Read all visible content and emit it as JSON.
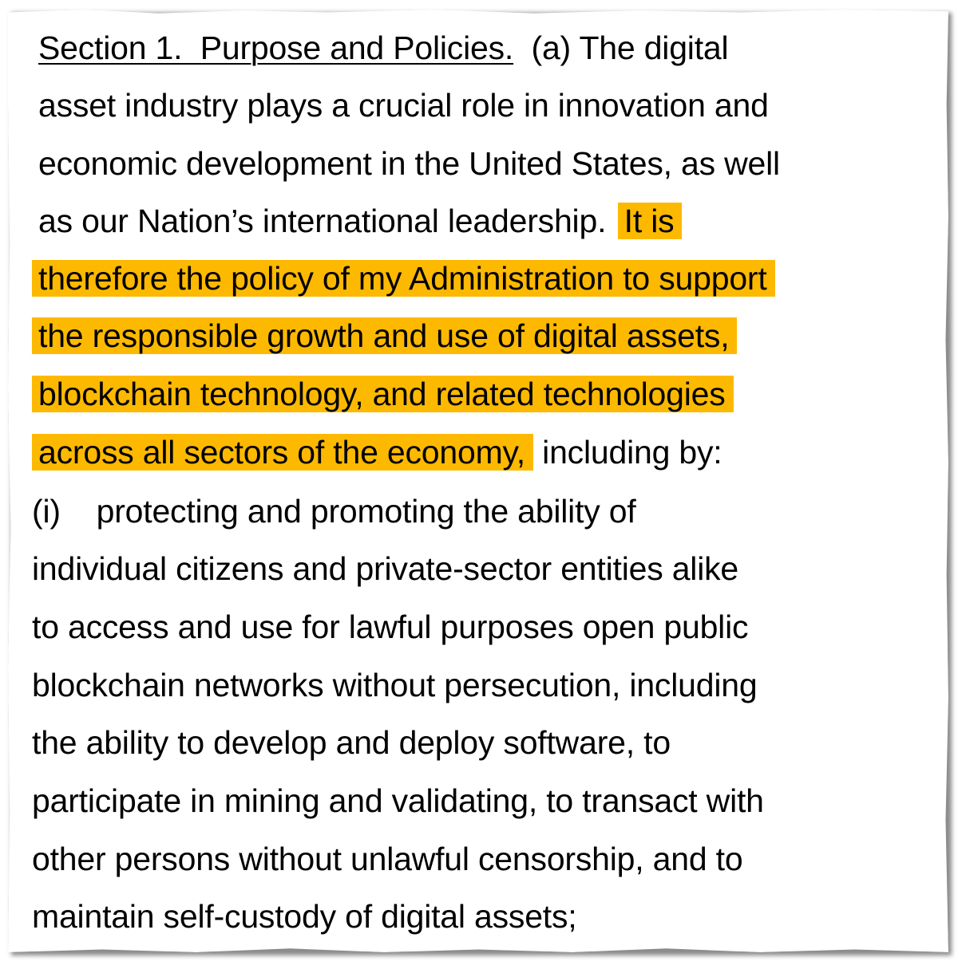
{
  "highlight_color": "#fdb900",
  "section": {
    "heading": "Section 1.  Purpose and Policies.",
    "subsection_label": "(a)",
    "lines": [
      {
        "pre": "",
        "hl": "",
        "post": " The digital"
      },
      {
        "pre": "asset industry plays a crucial role in innovation and",
        "hl": "",
        "post": ""
      },
      {
        "pre": "economic development in the United States, as well",
        "hl": "",
        "post": ""
      },
      {
        "pre": "as our Nation’s international leadership.  ",
        "hl": "It is",
        "post": ""
      },
      {
        "pre": "",
        "hl": "therefore the policy of my Administration to support",
        "post": ""
      },
      {
        "pre": "",
        "hl": "the responsible growth and use of digital assets,",
        "post": ""
      },
      {
        "pre": "",
        "hl": "blockchain technology, and related technologies",
        "post": ""
      },
      {
        "pre": "",
        "hl": "across all sectors of the economy,",
        "post": " including by:"
      }
    ]
  },
  "item_i": {
    "label": "(i)",
    "lines": [
      "protecting and promoting the ability of",
      "individual citizens and private-sector entities alike",
      "to access and use for lawful purposes open public",
      "blockchain networks without persecution, including",
      "the ability to develop and deploy software, to",
      "participate in mining and validating, to transact with",
      "other persons without unlawful censorship, and to",
      "maintain self-custody of digital assets;"
    ]
  }
}
